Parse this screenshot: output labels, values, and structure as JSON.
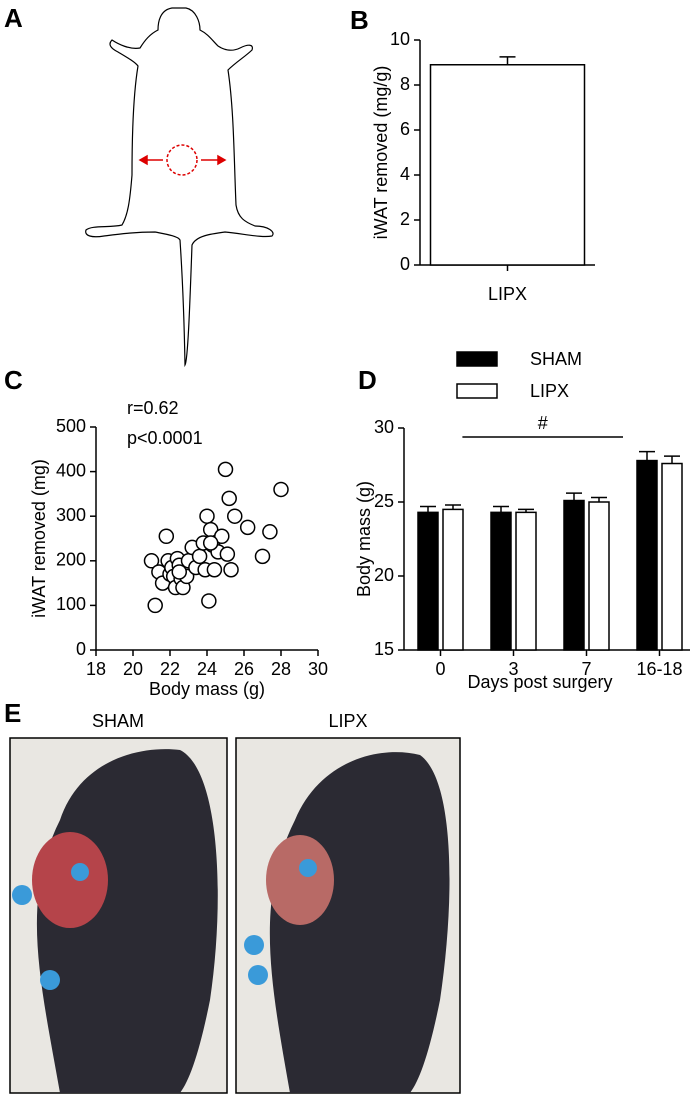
{
  "figure": {
    "panel_a": "A",
    "panel_e": "E",
    "photos": [
      "SHAM",
      "LIPX"
    ]
  },
  "chart_data": [
    {
      "type": "bar",
      "label": "B",
      "y_label": "iWAT removed (mg/g)",
      "categories": [
        "LIPX"
      ],
      "values": [
        8.9
      ],
      "errors": [
        0.35
      ],
      "color": "#ffffff",
      "ylim": [
        0,
        10
      ],
      "yticks": [
        0,
        2,
        4,
        6,
        8,
        10
      ]
    },
    {
      "type": "scatter",
      "label": "C",
      "x_label": "Body mass (g)",
      "y_label": "iWAT removed (mg)",
      "annotations": [
        "r=0.62",
        "p<0.0001"
      ],
      "x": [
        21.0,
        21.2,
        21.4,
        21.6,
        21.8,
        21.9,
        22.0,
        22.1,
        22.2,
        22.3,
        22.4,
        22.5,
        22.6,
        22.7,
        22.8,
        22.9,
        23.0,
        23.2,
        23.4,
        23.6,
        23.8,
        23.9,
        24.0,
        24.1,
        24.2,
        24.3,
        24.4,
        24.6,
        24.8,
        25.0,
        25.1,
        25.2,
        25.3,
        25.5,
        26.2,
        27.0,
        27.4,
        28.0,
        24.2,
        22.5
      ],
      "values": [
        200,
        100,
        175,
        150,
        255,
        200,
        170,
        185,
        165,
        140,
        205,
        190,
        160,
        140,
        175,
        165,
        200,
        230,
        185,
        210,
        240,
        180,
        300,
        110,
        270,
        235,
        180,
        220,
        255,
        405,
        215,
        340,
        180,
        300,
        275,
        210,
        265,
        360,
        240,
        175
      ],
      "xlim": [
        18,
        30
      ],
      "xticks": [
        18,
        20,
        22,
        24,
        26,
        28,
        30
      ],
      "ylim": [
        0,
        500
      ],
      "yticks": [
        0,
        100,
        200,
        300,
        400,
        500
      ]
    },
    {
      "type": "grouped_bar",
      "label": "D",
      "x_label": "Days post surgery",
      "y_label": "Body mass (g)",
      "annotation": "#",
      "categories": [
        "0",
        "3",
        "7",
        "16-18"
      ],
      "series": [
        {
          "name": "SHAM",
          "color": "#000000",
          "values": [
            24.3,
            24.3,
            25.1,
            27.8
          ],
          "errors": [
            0.4,
            0.4,
            0.5,
            0.6
          ]
        },
        {
          "name": "LIPX",
          "color": "#ffffff",
          "values": [
            24.5,
            24.3,
            25.0,
            27.6
          ],
          "errors": [
            0.3,
            0.2,
            0.3,
            0.5
          ]
        }
      ],
      "ylim": [
        15,
        30
      ],
      "yticks": [
        15,
        20,
        25,
        30
      ]
    }
  ]
}
